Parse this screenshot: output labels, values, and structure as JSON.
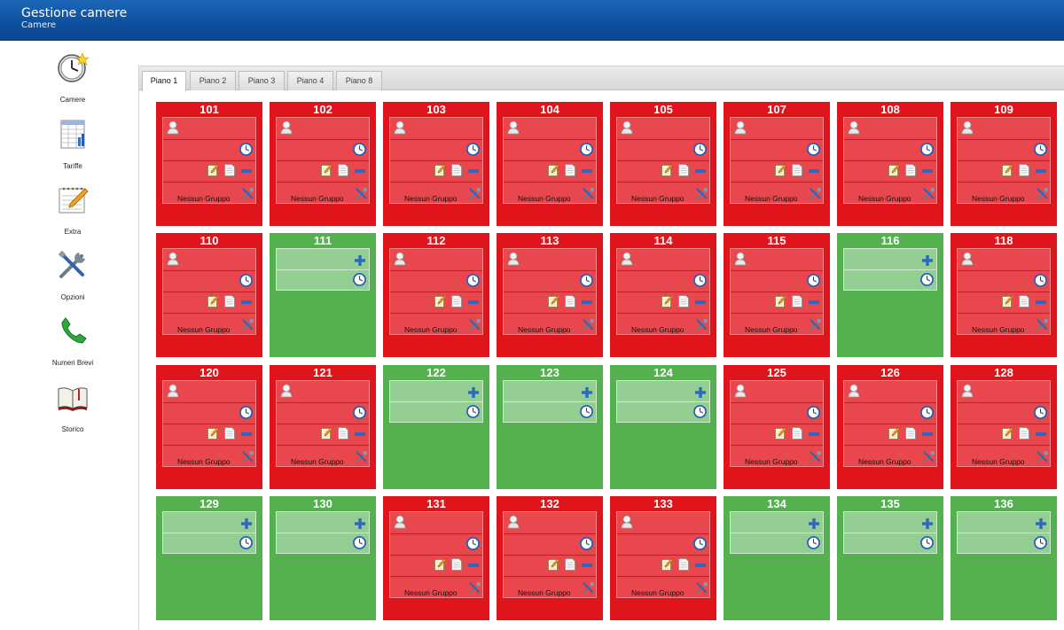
{
  "header": {
    "title": "Gestione camere",
    "subtitle": "Camere"
  },
  "sidebar": {
    "items": [
      {
        "label": "Camere",
        "icon": "clock-star-icon"
      },
      {
        "label": "Tariffe",
        "icon": "spreadsheet-icon"
      },
      {
        "label": "Extra",
        "icon": "notepad-pencil-icon"
      },
      {
        "label": "Opzioni",
        "icon": "tools-icon"
      },
      {
        "label": "Numeri Brevi",
        "icon": "phone-icon"
      },
      {
        "label": "Storico",
        "icon": "book-icon"
      }
    ]
  },
  "tabs": [
    {
      "label": "Piano 1",
      "active": true
    },
    {
      "label": "Piano 2",
      "active": false
    },
    {
      "label": "Piano 3",
      "active": false
    },
    {
      "label": "Piano 4",
      "active": false
    },
    {
      "label": "Piano 8",
      "active": false
    }
  ],
  "group_label": "Nessun Gruppo",
  "colors": {
    "occupied": "#e0141b",
    "free": "#55b04f",
    "header": "#0d4f9c"
  },
  "rooms": [
    [
      {
        "number": "101",
        "status": "occupied"
      },
      {
        "number": "102",
        "status": "occupied"
      },
      {
        "number": "103",
        "status": "occupied"
      },
      {
        "number": "104",
        "status": "occupied"
      },
      {
        "number": "105",
        "status": "occupied"
      },
      {
        "number": "107",
        "status": "occupied"
      },
      {
        "number": "108",
        "status": "occupied"
      },
      {
        "number": "109",
        "status": "occupied"
      }
    ],
    [
      {
        "number": "110",
        "status": "occupied"
      },
      {
        "number": "111",
        "status": "free"
      },
      {
        "number": "112",
        "status": "occupied"
      },
      {
        "number": "113",
        "status": "occupied"
      },
      {
        "number": "114",
        "status": "occupied"
      },
      {
        "number": "115",
        "status": "occupied"
      },
      {
        "number": "116",
        "status": "free"
      },
      {
        "number": "118",
        "status": "occupied"
      }
    ],
    [
      {
        "number": "120",
        "status": "occupied"
      },
      {
        "number": "121",
        "status": "occupied"
      },
      {
        "number": "122",
        "status": "free"
      },
      {
        "number": "123",
        "status": "free"
      },
      {
        "number": "124",
        "status": "free"
      },
      {
        "number": "125",
        "status": "occupied"
      },
      {
        "number": "126",
        "status": "occupied"
      },
      {
        "number": "128",
        "status": "occupied"
      }
    ],
    [
      {
        "number": "129",
        "status": "free"
      },
      {
        "number": "130",
        "status": "free"
      },
      {
        "number": "131",
        "status": "occupied"
      },
      {
        "number": "132",
        "status": "occupied"
      },
      {
        "number": "133",
        "status": "occupied"
      },
      {
        "number": "134",
        "status": "free"
      },
      {
        "number": "135",
        "status": "free"
      },
      {
        "number": "136",
        "status": "free"
      }
    ]
  ]
}
